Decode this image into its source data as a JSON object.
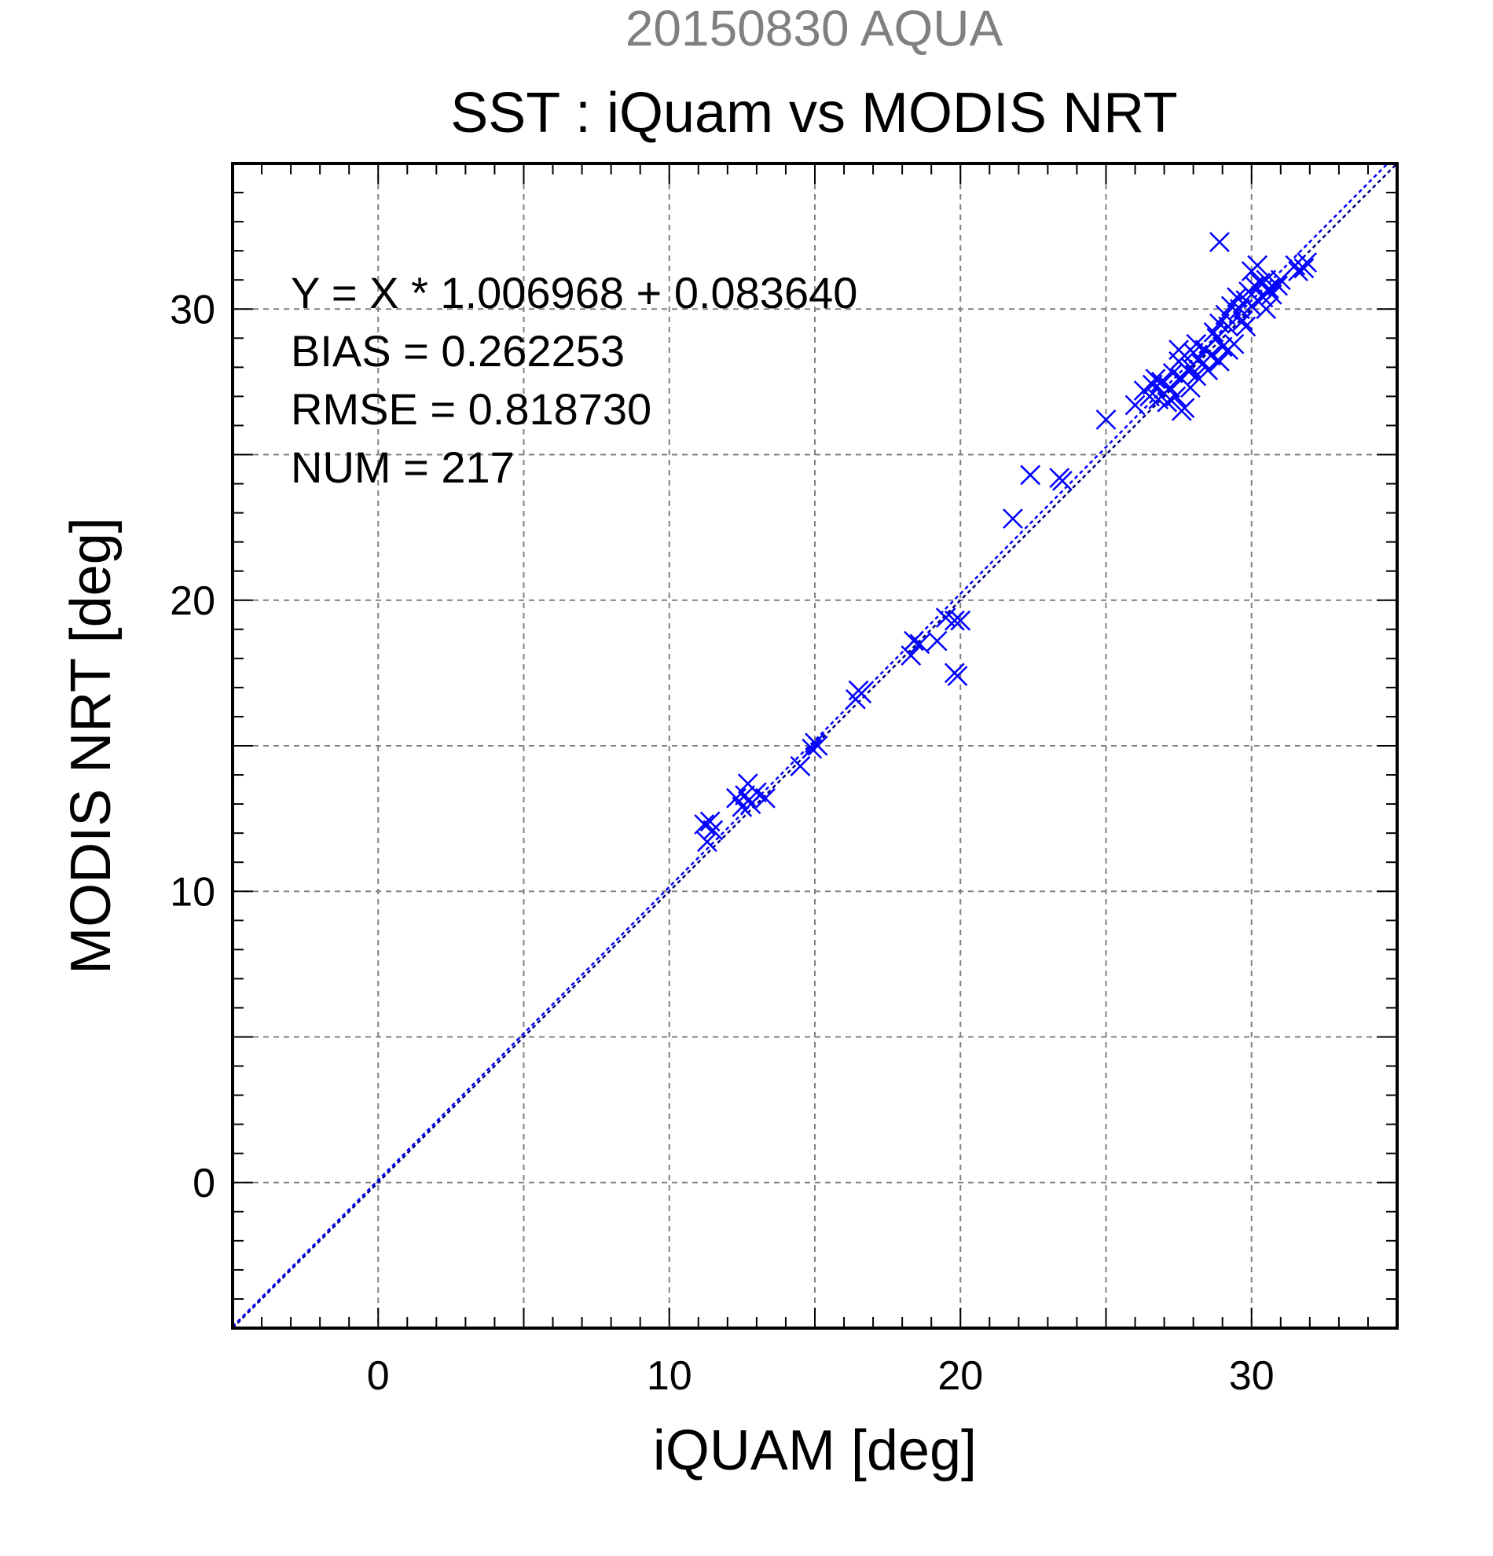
{
  "chart_data": {
    "type": "scatter",
    "header": "20150830 AQUA",
    "title": "SST : iQuam vs MODIS NRT",
    "xlabel": "iQUAM [deg]",
    "ylabel": "MODIS NRT [deg]",
    "xlim": [
      -5,
      35
    ],
    "ylim": [
      -5,
      35
    ],
    "xticks": [
      "0",
      "10",
      "20",
      "30"
    ],
    "yticks": [
      "0",
      "10",
      "20",
      "30"
    ],
    "tick_values": [
      0,
      10,
      20,
      30
    ],
    "grid_values": [
      0,
      5,
      10,
      15,
      20,
      25,
      30
    ],
    "grid": true,
    "stats": [
      "Y = X * 1.006968 + 0.083640",
      "BIAS = 0.262253",
      "RMSE = 0.818730",
      "NUM = 217"
    ],
    "fit": {
      "slope": 1.006968,
      "intercept": 0.08364
    },
    "colors": {
      "points": "#0000ff",
      "fit_line": "#0000ff",
      "one_to_one": "#000080",
      "header": "#808080"
    },
    "points": [
      [
        11.2,
        12.3
      ],
      [
        11.3,
        11.7
      ],
      [
        11.5,
        12.1
      ],
      [
        11.4,
        12.4
      ],
      [
        12.3,
        13.2
      ],
      [
        12.5,
        12.9
      ],
      [
        12.7,
        13.7
      ],
      [
        12.8,
        13.0
      ],
      [
        13.0,
        13.4
      ],
      [
        13.3,
        13.2
      ],
      [
        12.6,
        13.3
      ],
      [
        14.5,
        14.3
      ],
      [
        14.9,
        14.9
      ],
      [
        15.1,
        15.0
      ],
      [
        15.0,
        15.1
      ],
      [
        16.4,
        16.6
      ],
      [
        16.6,
        16.8
      ],
      [
        16.5,
        16.9
      ],
      [
        18.3,
        18.1
      ],
      [
        18.4,
        18.6
      ],
      [
        18.6,
        18.5
      ],
      [
        19.2,
        18.6
      ],
      [
        19.5,
        19.4
      ],
      [
        19.8,
        19.3
      ],
      [
        20.0,
        19.3
      ],
      [
        19.9,
        17.4
      ],
      [
        19.8,
        17.5
      ],
      [
        21.8,
        22.8
      ],
      [
        22.4,
        24.3
      ],
      [
        23.4,
        24.2
      ],
      [
        23.5,
        24.1
      ],
      [
        25.0,
        26.2
      ],
      [
        26.0,
        26.7
      ],
      [
        26.3,
        27.2
      ],
      [
        26.5,
        27.0
      ],
      [
        26.6,
        27.4
      ],
      [
        26.8,
        26.9
      ],
      [
        27.0,
        27.1
      ],
      [
        26.9,
        27.5
      ],
      [
        27.1,
        26.8
      ],
      [
        27.2,
        27.3
      ],
      [
        26.7,
        27.6
      ],
      [
        27.3,
        27.8
      ],
      [
        27.4,
        27.0
      ],
      [
        27.5,
        28.2
      ],
      [
        27.6,
        27.6
      ],
      [
        27.7,
        28.4
      ],
      [
        27.8,
        27.9
      ],
      [
        27.6,
        26.5
      ],
      [
        27.7,
        26.6
      ],
      [
        27.9,
        28.0
      ],
      [
        28.0,
        28.5
      ],
      [
        28.1,
        27.7
      ],
      [
        28.2,
        28.3
      ],
      [
        28.3,
        28.1
      ],
      [
        28.4,
        28.6
      ],
      [
        28.5,
        27.9
      ],
      [
        27.5,
        28.6
      ],
      [
        27.9,
        27.3
      ],
      [
        28.1,
        28.8
      ],
      [
        28.6,
        28.4
      ],
      [
        28.7,
        29.2
      ],
      [
        28.8,
        29.0
      ],
      [
        28.9,
        29.5
      ],
      [
        29.0,
        28.7
      ],
      [
        28.9,
        28.2
      ],
      [
        29.1,
        29.8
      ],
      [
        29.2,
        29.4
      ],
      [
        29.3,
        30.1
      ],
      [
        29.4,
        28.8
      ],
      [
        29.5,
        30.4
      ],
      [
        29.6,
        30.0
      ],
      [
        29.7,
        29.6
      ],
      [
        29.2,
        28.6
      ],
      [
        29.8,
        30.3
      ],
      [
        29.9,
        30.6
      ],
      [
        30.0,
        30.1
      ],
      [
        30.1,
        30.8
      ],
      [
        30.2,
        30.3
      ],
      [
        30.3,
        30.9
      ],
      [
        30.4,
        30.4
      ],
      [
        30.5,
        31.0
      ],
      [
        30.6,
        30.7
      ],
      [
        30.7,
        30.5
      ],
      [
        30.0,
        31.3
      ],
      [
        30.2,
        31.5
      ],
      [
        29.8,
        29.4
      ],
      [
        30.5,
        30.0
      ],
      [
        30.9,
        30.8
      ],
      [
        28.9,
        32.3
      ],
      [
        31.0,
        31.0
      ],
      [
        31.5,
        31.5
      ],
      [
        31.8,
        31.4
      ],
      [
        31.9,
        31.6
      ],
      [
        31.6,
        31.3
      ]
    ]
  }
}
